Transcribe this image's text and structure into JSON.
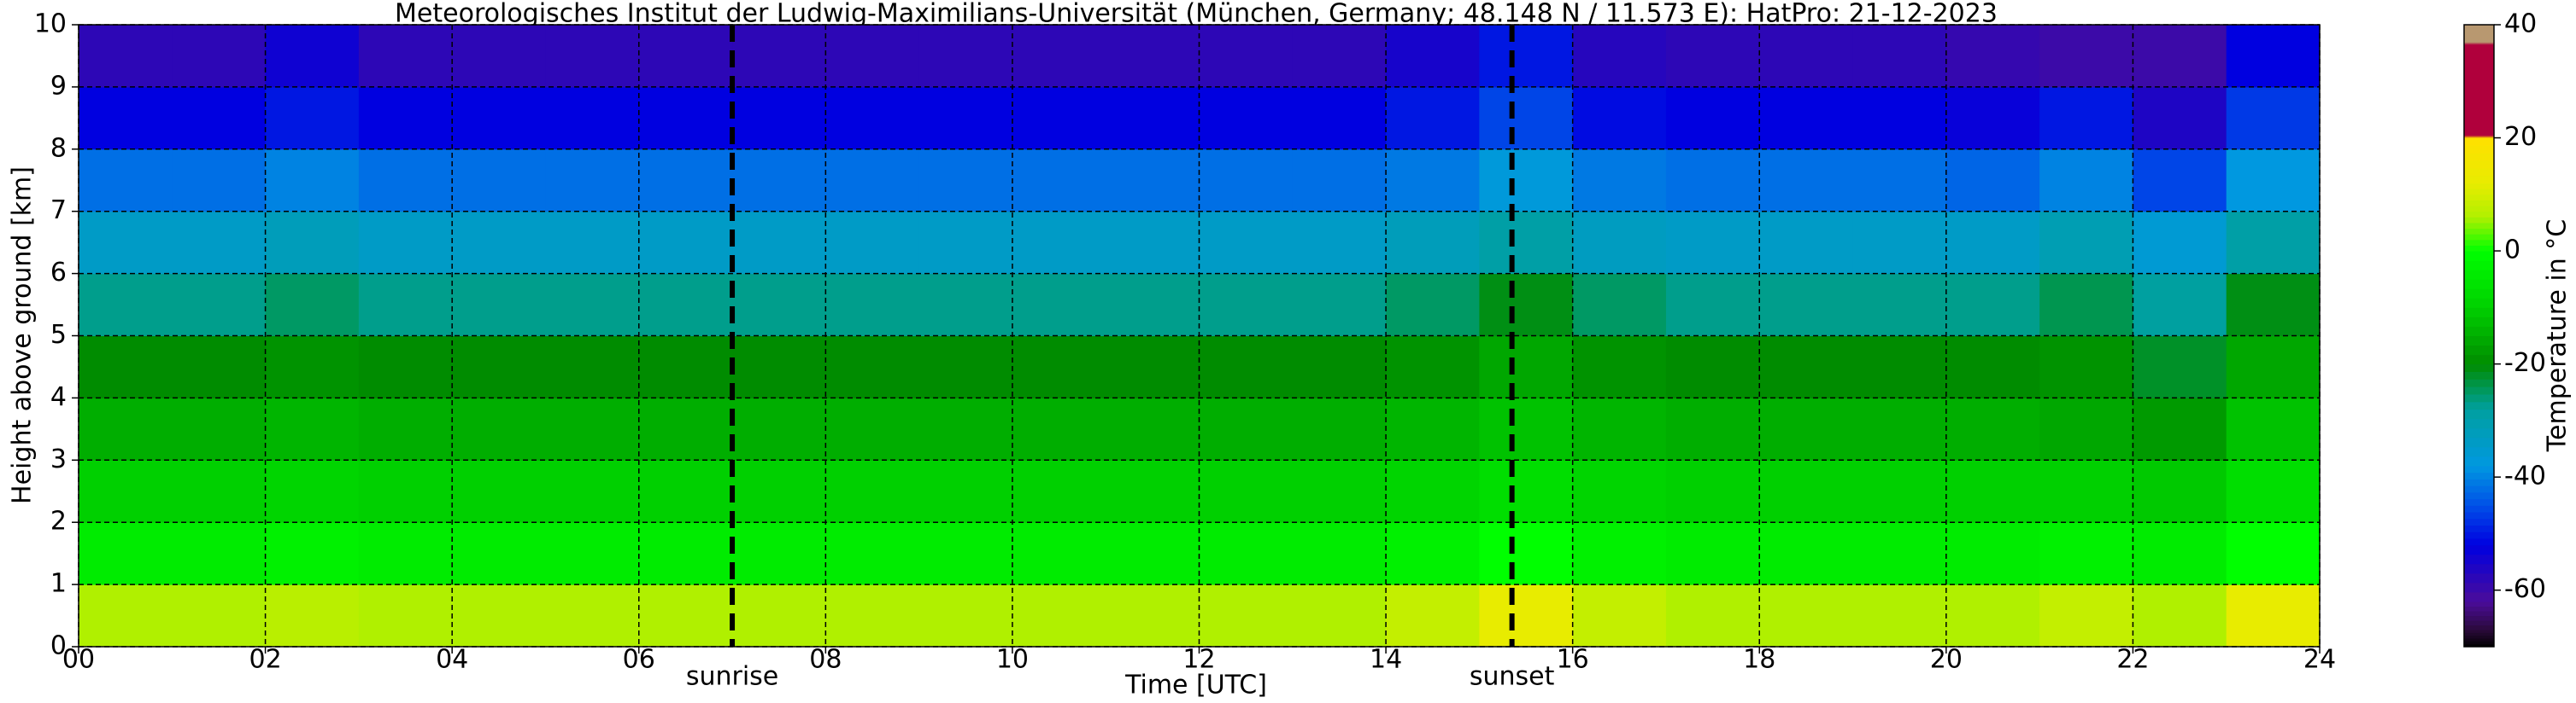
{
  "chart_data": {
    "type": "heatmap",
    "title": "Meteorologisches Institut der Ludwig-Maximilians-Universität (München, Germany; 48.148 N / 11.573 E):    HatPro: 21-12-2023",
    "xlabel": "Time [UTC]",
    "ylabel": "Height above ground [km]",
    "colorbar_label": "Temperature in °C",
    "x": [
      0,
      1,
      2,
      3,
      4,
      5,
      6,
      7,
      8,
      9,
      10,
      11,
      12,
      13,
      14,
      15,
      16,
      17,
      18,
      19,
      20,
      21,
      22,
      23,
      24
    ],
    "y": [
      0,
      1,
      2,
      3,
      4,
      5,
      6,
      7,
      8,
      9,
      10
    ],
    "z": [
      [
        6,
        6,
        7,
        6,
        6,
        6,
        6,
        6,
        6,
        6,
        6,
        6,
        6,
        6,
        8,
        12,
        8,
        6,
        6,
        6,
        6,
        8,
        6,
        12
      ],
      [
        -4,
        -4,
        -3,
        -4,
        -4,
        -4,
        -4,
        -4,
        -4,
        -4,
        -4,
        -4,
        -4,
        -4,
        -3,
        0,
        -3,
        -4,
        -4,
        -4,
        -4,
        -3,
        -4,
        0
      ],
      [
        -10,
        -10,
        -9,
        -10,
        -10,
        -10,
        -10,
        -10,
        -10,
        -10,
        -10,
        -10,
        -10,
        -10,
        -9,
        -7,
        -9,
        -10,
        -10,
        -10,
        -10,
        -10,
        -11,
        -7
      ],
      [
        -15,
        -15,
        -14,
        -15,
        -15,
        -15,
        -15,
        -15,
        -15,
        -15,
        -15,
        -15,
        -15,
        -15,
        -14,
        -12,
        -14,
        -15,
        -15,
        -15,
        -15,
        -16,
        -18,
        -12
      ],
      [
        -20,
        -20,
        -19,
        -20,
        -20,
        -20,
        -20,
        -20,
        -20,
        -20,
        -20,
        -20,
        -20,
        -20,
        -19,
        -16,
        -19,
        -20,
        -20,
        -20,
        -20,
        -19,
        -22,
        -16
      ],
      [
        -27,
        -27,
        -25,
        -27,
        -27,
        -27,
        -27,
        -27,
        -27,
        -27,
        -27,
        -27,
        -27,
        -27,
        -25,
        -21,
        -25,
        -27,
        -27,
        -27,
        -27,
        -24,
        -28,
        -21
      ],
      [
        -34,
        -34,
        -32,
        -34,
        -34,
        -34,
        -34,
        -34,
        -34,
        -34,
        -34,
        -34,
        -34,
        -34,
        -32,
        -29,
        -33,
        -34,
        -34,
        -34,
        -34,
        -31,
        -36,
        -29
      ],
      [
        -42,
        -42,
        -40,
        -42,
        -42,
        -42,
        -42,
        -42,
        -42,
        -42,
        -42,
        -42,
        -42,
        -42,
        -41,
        -37,
        -41,
        -42,
        -42,
        -42,
        -43,
        -40,
        -46,
        -38
      ],
      [
        -52,
        -52,
        -50,
        -52,
        -52,
        -52,
        -52,
        -52,
        -52,
        -52,
        -52,
        -52,
        -52,
        -52,
        -50,
        -46,
        -51,
        -52,
        -52,
        -52,
        -53,
        -50,
        -56,
        -47
      ],
      [
        -58,
        -58,
        -54,
        -58,
        -58,
        -58,
        -58,
        -58,
        -58,
        -58,
        -58,
        -58,
        -58,
        -58,
        -55,
        -50,
        -57,
        -58,
        -58,
        -58,
        -59,
        -60,
        -60,
        -52
      ]
    ],
    "xlim": [
      0,
      24
    ],
    "ylim": [
      0,
      10
    ],
    "xticks": [
      {
        "value": 0,
        "label": "00"
      },
      {
        "value": 2,
        "label": "02"
      },
      {
        "value": 4,
        "label": "04"
      },
      {
        "value": 6,
        "label": "06"
      },
      {
        "value": 8,
        "label": "08"
      },
      {
        "value": 10,
        "label": "10"
      },
      {
        "value": 12,
        "label": "12"
      },
      {
        "value": 14,
        "label": "14"
      },
      {
        "value": 16,
        "label": "16"
      },
      {
        "value": 18,
        "label": "18"
      },
      {
        "value": 20,
        "label": "20"
      },
      {
        "value": 22,
        "label": "22"
      },
      {
        "value": 24,
        "label": "24"
      }
    ],
    "yticks": [
      0,
      1,
      2,
      3,
      4,
      5,
      6,
      7,
      8,
      9,
      10
    ],
    "clim": [
      -70,
      40
    ],
    "cticks": [
      -60,
      -40,
      -20,
      0,
      20,
      40
    ],
    "colormap": [
      [
        -70,
        "#000000"
      ],
      [
        -67,
        "#2a0a3a"
      ],
      [
        -62,
        "#4b0c9a"
      ],
      [
        -52,
        "#0000e0"
      ],
      [
        -45,
        "#0050e8"
      ],
      [
        -38,
        "#0098e0"
      ],
      [
        -28,
        "#00a0a0"
      ],
      [
        -20,
        "#008c00"
      ],
      [
        -10,
        "#00d000"
      ],
      [
        0,
        "#00ff00"
      ],
      [
        6,
        "#b0f000"
      ],
      [
        12,
        "#e8ec00"
      ],
      [
        20,
        "#ffe000"
      ],
      [
        20.5,
        "#b0003c"
      ],
      [
        36.5,
        "#b0003c"
      ],
      [
        37,
        "#b89870"
      ],
      [
        40,
        "#b89870"
      ]
    ],
    "grid": true,
    "annotations": [
      {
        "x": 7.0,
        "label": "sunrise"
      },
      {
        "x": 15.35,
        "label": "sunset"
      }
    ]
  }
}
